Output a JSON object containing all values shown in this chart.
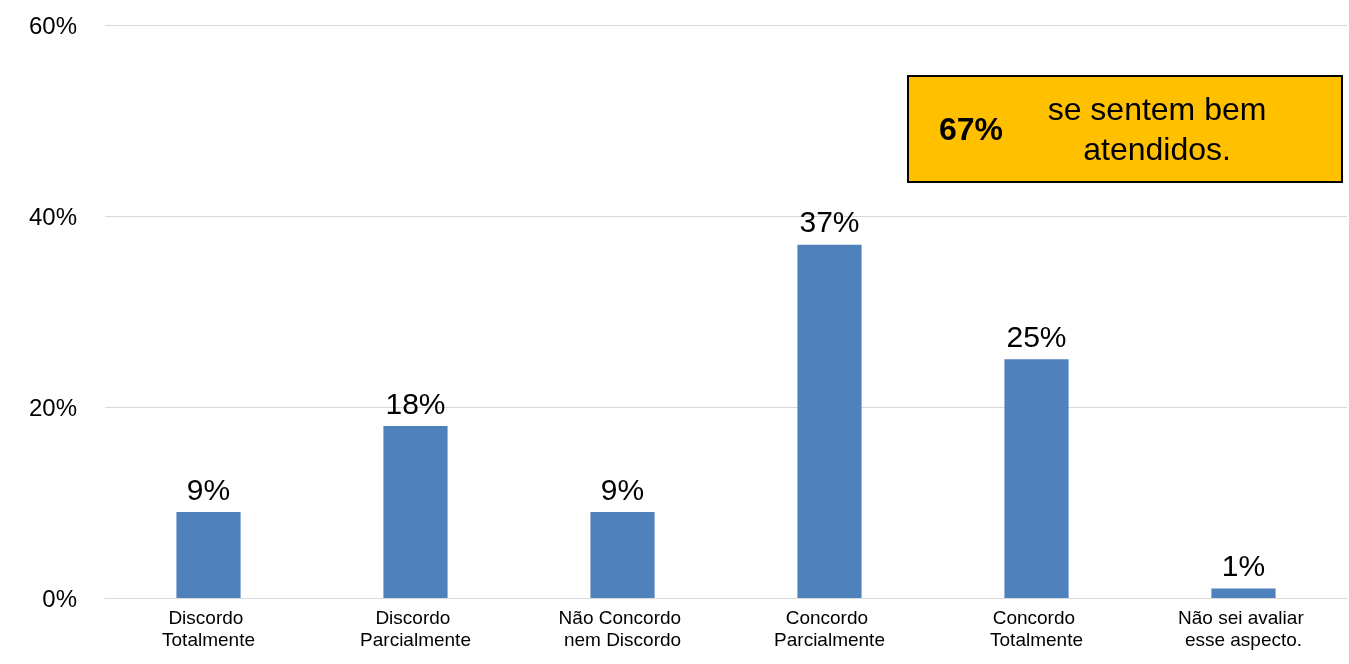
{
  "chart_data": {
    "type": "bar",
    "categories": [
      "Discordo Totalmente",
      "Discordo Parcialmente",
      "Não Concordo nem Discordo",
      "Concordo Parcialmente",
      "Concordo Totalmente",
      "Não sei avaliar esse aspecto."
    ],
    "values": [
      9,
      18,
      9,
      37,
      25,
      1
    ],
    "value_labels": [
      "9%",
      "18%",
      "9%",
      "37%",
      "25%",
      "1%"
    ],
    "color": "#4f81bd",
    "ylim": [
      0,
      60
    ],
    "yticks": [
      {
        "value": 0,
        "label": "0%"
      },
      {
        "value": 20,
        "label": "20%"
      },
      {
        "value": 40,
        "label": "40%"
      },
      {
        "value": 60,
        "label": "60%"
      }
    ],
    "grid": "y",
    "annotations": [
      "67% se sentem bem atendidos."
    ]
  }
}
